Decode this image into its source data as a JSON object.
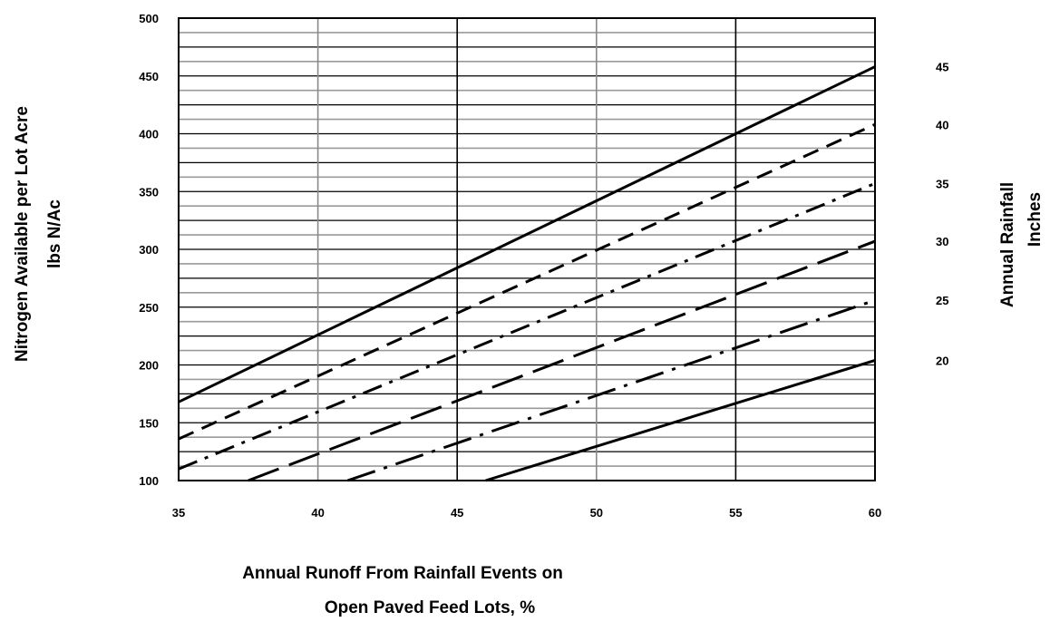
{
  "chart_data": {
    "type": "line",
    "title": "",
    "xlabel_line1": "Annual Runoff From Rainfall Events on",
    "xlabel_line2": "Open Paved Feed Lots, %",
    "ylabel_line1": "Nitrogen Available per Lot Acre",
    "ylabel_line2": "lbs N/Ac",
    "y2label_line1": "Annual Rainfall",
    "y2label_line2": "Inches",
    "xlim": [
      35,
      60
    ],
    "ylim": [
      100,
      500
    ],
    "x_ticks": [
      35,
      40,
      45,
      50,
      55,
      60
    ],
    "x_tick_labels": [
      "35",
      "40",
      "45",
      "50",
      "55",
      "60"
    ],
    "y_ticks": [
      100,
      150,
      200,
      250,
      300,
      350,
      400,
      450,
      500
    ],
    "y_tick_labels": [
      "100",
      "150",
      "200",
      "250",
      "300",
      "350",
      "400",
      "450",
      "500"
    ],
    "grid": true,
    "series": [
      {
        "name": "45",
        "style": "solid",
        "x": [
          35,
          60
        ],
        "y": [
          168,
          458
        ]
      },
      {
        "name": "40",
        "style": "dashed",
        "x": [
          35,
          60
        ],
        "y": [
          136,
          408
        ]
      },
      {
        "name": "35",
        "style": "dash-dot",
        "x": [
          35,
          60
        ],
        "y": [
          110,
          357
        ]
      },
      {
        "name": "30",
        "style": "long-dash",
        "x": [
          35,
          60
        ],
        "y": [
          77,
          307
        ]
      },
      {
        "name": "25",
        "style": "long-dash-dot",
        "x": [
          35,
          60
        ],
        "y": [
          50,
          256
        ]
      },
      {
        "name": "20",
        "style": "solid",
        "x": [
          35,
          60
        ],
        "y": [
          18,
          204
        ]
      }
    ]
  }
}
